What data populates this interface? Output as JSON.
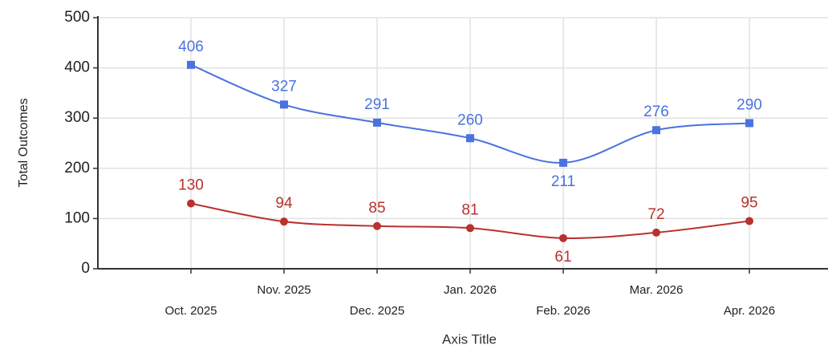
{
  "chart_data": {
    "type": "line",
    "x_label": "Axis Title",
    "y_label": "Total Outcomes",
    "categories": [
      "Oct. 2025",
      "Nov. 2025",
      "Dec. 2025",
      "Jan. 2026",
      "Feb. 2026",
      "Mar. 2026",
      "Apr. 2026"
    ],
    "series": [
      {
        "color": "#4a72e0",
        "marker": "square",
        "values": [
          406,
          327,
          291,
          260,
          211,
          276,
          290
        ]
      },
      {
        "color": "#b8322e",
        "marker": "circle",
        "values": [
          130,
          94,
          85,
          81,
          61,
          72,
          95
        ]
      }
    ],
    "ylim": [
      0,
      500
    ],
    "yticks": [
      0,
      100,
      200,
      300,
      400,
      500
    ],
    "grid": true,
    "smooth": true
  }
}
